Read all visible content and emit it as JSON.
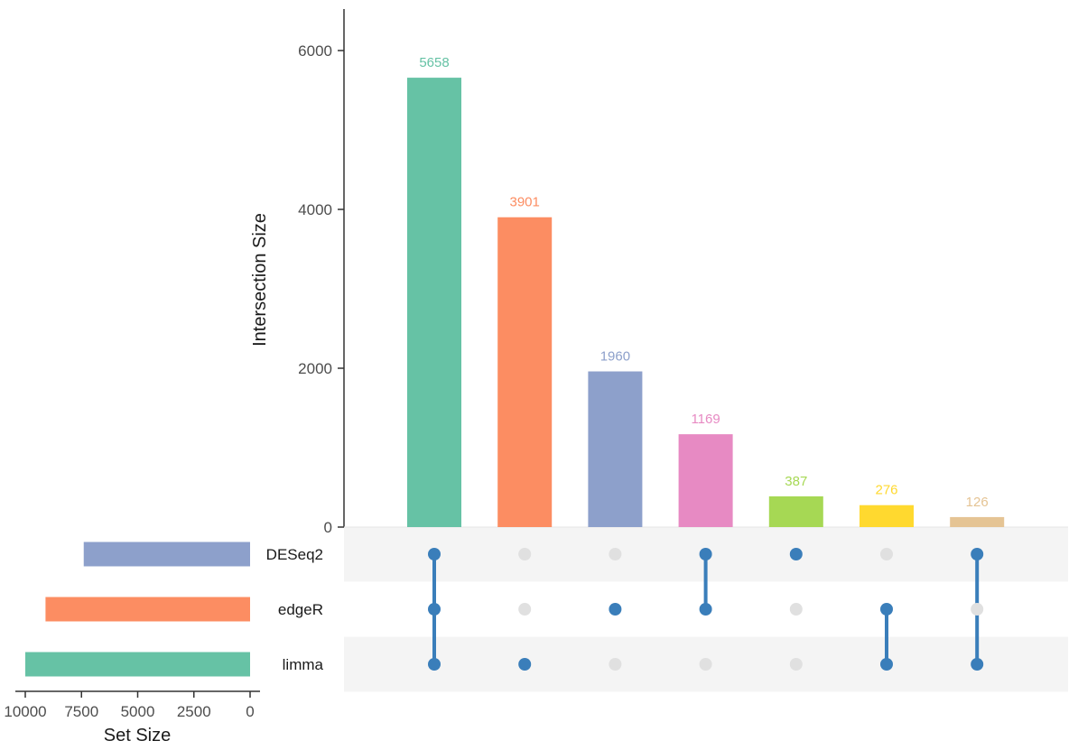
{
  "chart_data": {
    "type": "upset",
    "sets": [
      {
        "name": "DESeq2",
        "size": 7400,
        "color": "#8DA0CB"
      },
      {
        "name": "edgeR",
        "size": 9100,
        "color": "#FC8D62"
      },
      {
        "name": "limma",
        "size": 10000,
        "color": "#66C2A5"
      }
    ],
    "intersections": [
      {
        "value": 5658,
        "label": "5658",
        "color": "#66C2A5",
        "members": [
          "DESeq2",
          "edgeR",
          "limma"
        ]
      },
      {
        "value": 3901,
        "label": "3901",
        "color": "#FC8D62",
        "members": [
          "limma"
        ]
      },
      {
        "value": 1960,
        "label": "1960",
        "color": "#8DA0CB",
        "members": [
          "edgeR"
        ]
      },
      {
        "value": 1169,
        "label": "1169",
        "color": "#E78AC3",
        "members": [
          "DESeq2",
          "edgeR"
        ]
      },
      {
        "value": 387,
        "label": "387",
        "color": "#A6D854",
        "members": [
          "DESeq2"
        ]
      },
      {
        "value": 276,
        "label": "276",
        "color": "#FFD92F",
        "members": [
          "edgeR",
          "limma"
        ]
      },
      {
        "value": 126,
        "label": "126",
        "color": "#E5C494",
        "members": [
          "DESeq2",
          "limma"
        ]
      }
    ],
    "intersection_axis": {
      "title": "Intersection Size",
      "ylim": [
        0,
        6500
      ],
      "ticks": [
        0,
        2000,
        4000,
        6000
      ],
      "tick_labels": [
        "0",
        "2000",
        "4000",
        "6000"
      ]
    },
    "set_size_axis": {
      "title": "Set Size",
      "xlim": [
        10500,
        0
      ],
      "ticks": [
        10000,
        7500,
        5000,
        2500,
        0
      ],
      "tick_labels": [
        "10000",
        "7500",
        "5000",
        "2500",
        "0"
      ]
    },
    "matrix_colors": {
      "active_dot": "#3A7EBA",
      "inactive_dot": "#E0E0E0",
      "stripe": "#F4F4F4"
    }
  }
}
